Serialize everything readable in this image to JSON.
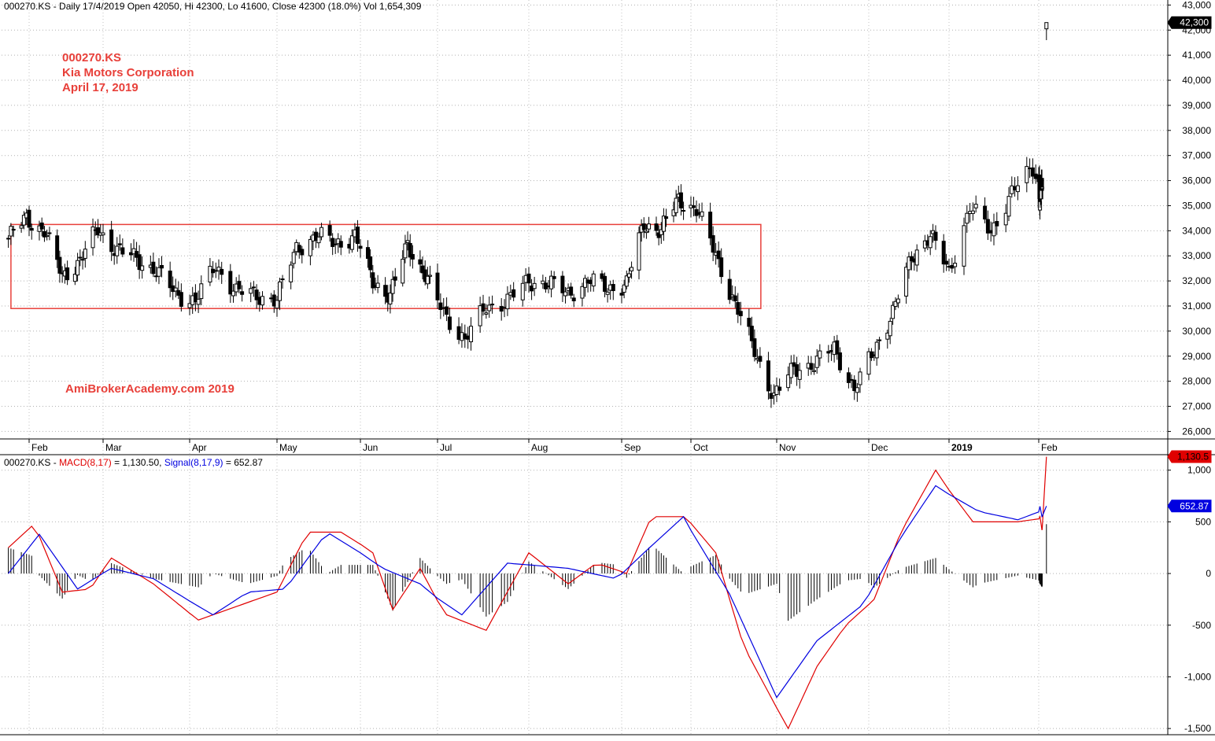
{
  "header": {
    "price_text": "000270.KS - Daily 17/4/2019 Open 42050, Hi 42300, Lo 41600, Close 42300 (18.0%) Vol 1,654,309",
    "macd_prefix": "000270.KS - ",
    "macd_label": "MACD(8,17)",
    "macd_value": " = 1,130.50, ",
    "signal_label": "Signal(8,17,9)",
    "signal_value": " = 652.87"
  },
  "annotations": {
    "symbol": "000270.KS",
    "company": "Kia Motors Corporation",
    "date": "April 17, 2019",
    "watermark": "AmiBrokerAcademy.com  2019"
  },
  "colors": {
    "macd": "#e00000",
    "signal": "#0000e0",
    "box": "#e8403a",
    "annotation": "#e8403a",
    "candle": "#000000"
  },
  "chart_data": [
    {
      "type": "candlestick",
      "x_labels": [
        "Feb",
        "Mar",
        "Apr",
        "May",
        "Jun",
        "Jul",
        "Aug",
        "Sep",
        "Oct",
        "Nov",
        "Dec",
        "2019",
        "Feb"
      ],
      "y_ticks": [
        26000,
        27000,
        28000,
        29000,
        30000,
        31000,
        32000,
        33000,
        34000,
        35000,
        36000,
        37000,
        38000,
        39000,
        40000,
        41000,
        42000,
        43000
      ],
      "y_tick_labels": [
        "26,000",
        "27,000",
        "28,000",
        "29,000",
        "30,000",
        "31,000",
        "32,000",
        "33,000",
        "34,000",
        "35,000",
        "36,000",
        "37,000",
        "38,000",
        "39,000",
        "40,000",
        "41,000",
        "42,000",
        "43,000"
      ],
      "ylim": [
        25700,
        43200
      ],
      "last_price_label": "42,300",
      "range_box": {
        "start": "2018-01-25",
        "end": "2018-10-24",
        "low": 30900,
        "high": 34250
      },
      "closes": [
        [
          "2018-01-24",
          33700
        ],
        [
          "2018-01-31",
          34500
        ],
        [
          "2018-02-07",
          34000
        ],
        [
          "2018-02-14",
          32200
        ],
        [
          "2018-02-21",
          32800
        ],
        [
          "2018-02-28",
          34100
        ],
        [
          "2018-03-07",
          33200
        ],
        [
          "2018-03-14",
          32900
        ],
        [
          "2018-03-21",
          32400
        ],
        [
          "2018-03-28",
          31500
        ],
        [
          "2018-04-04",
          31200
        ],
        [
          "2018-04-11",
          32600
        ],
        [
          "2018-04-18",
          31600
        ],
        [
          "2018-04-25",
          31400
        ],
        [
          "2018-05-02",
          31300
        ],
        [
          "2018-05-09",
          33300
        ],
        [
          "2018-05-16",
          33800
        ],
        [
          "2018-05-23",
          33500
        ],
        [
          "2018-05-30",
          33800
        ],
        [
          "2018-06-06",
          32000
        ],
        [
          "2018-06-13",
          31400
        ],
        [
          "2018-06-20",
          33500
        ],
        [
          "2018-06-27",
          32200
        ],
        [
          "2018-07-04",
          30800
        ],
        [
          "2018-07-11",
          29600
        ],
        [
          "2018-07-18",
          31000
        ],
        [
          "2018-07-25",
          31200
        ],
        [
          "2018-08-01",
          32000
        ],
        [
          "2018-08-08",
          31900
        ],
        [
          "2018-08-15",
          31500
        ],
        [
          "2018-08-22",
          32000
        ],
        [
          "2018-08-29",
          31700
        ],
        [
          "2018-09-05",
          31900
        ],
        [
          "2018-09-12",
          34300
        ],
        [
          "2018-09-19",
          34000
        ],
        [
          "2018-09-26",
          35300
        ],
        [
          "2018-10-03",
          34800
        ],
        [
          "2018-10-10",
          33100
        ],
        [
          "2018-10-17",
          31000
        ],
        [
          "2018-10-24",
          29300
        ],
        [
          "2018-10-31",
          27300
        ],
        [
          "2018-11-07",
          28600
        ],
        [
          "2018-11-14",
          28600
        ],
        [
          "2018-11-21",
          29400
        ],
        [
          "2018-11-28",
          27600
        ],
        [
          "2018-12-05",
          29300
        ],
        [
          "2018-12-12",
          30700
        ],
        [
          "2018-12-19",
          33000
        ],
        [
          "2018-12-26",
          33800
        ],
        [
          "2019-01-02",
          32400
        ],
        [
          "2019-01-09",
          34900
        ],
        [
          "2019-01-16",
          34000
        ],
        [
          "2019-01-23",
          35500
        ],
        [
          "2019-01-30",
          36500
        ],
        [
          "2019-02-06",
          35000
        ],
        [
          "2019-02-13",
          36000
        ],
        [
          "2019-04-17",
          42300
        ]
      ]
    },
    {
      "type": "line",
      "title": "MACD(8,17)",
      "y_ticks": [
        -1500,
        -1000,
        -500,
        0,
        500,
        1000
      ],
      "y_tick_labels": [
        "-1,500",
        "-1,000",
        "-500",
        "0",
        "500",
        "1,000"
      ],
      "ylim": [
        -1560,
        1150
      ],
      "macd_last_label": "1,130.5",
      "signal_last_label": "652.87",
      "series": [
        {
          "name": "MACD(8,17)",
          "points": [
            [
              "2018-01-24",
              250
            ],
            [
              "2018-02-03",
              480
            ],
            [
              "2018-02-14",
              -180
            ],
            [
              "2018-02-25",
              -150
            ],
            [
              "2018-03-05",
              150
            ],
            [
              "2018-03-20",
              -100
            ],
            [
              "2018-04-05",
              -450
            ],
            [
              "2018-04-20",
              -300
            ],
            [
              "2018-05-02",
              -180
            ],
            [
              "2018-05-13",
              400
            ],
            [
              "2018-05-25",
              400
            ],
            [
              "2018-06-06",
              200
            ],
            [
              "2018-06-14",
              -350
            ],
            [
              "2018-06-25",
              50
            ],
            [
              "2018-07-05",
              -400
            ],
            [
              "2018-07-18",
              -550
            ],
            [
              "2018-08-01",
              200
            ],
            [
              "2018-08-15",
              -100
            ],
            [
              "2018-08-25",
              100
            ],
            [
              "2018-09-05",
              0
            ],
            [
              "2018-09-15",
              550
            ],
            [
              "2018-09-29",
              550
            ],
            [
              "2018-10-10",
              200
            ],
            [
              "2018-10-20",
              -700
            ],
            [
              "2018-11-05",
              -1500
            ],
            [
              "2018-11-15",
              -900
            ],
            [
              "2018-11-25",
              -500
            ],
            [
              "2018-12-05",
              -250
            ],
            [
              "2018-12-15",
              400
            ],
            [
              "2018-12-28",
              1000
            ],
            [
              "2019-01-10",
              500
            ],
            [
              "2019-01-25",
              500
            ],
            [
              "2019-02-06",
              550
            ],
            [
              "2019-02-14",
              420
            ],
            [
              "2019-04-17",
              1130.5
            ]
          ]
        },
        {
          "name": "Signal(8,17,9)",
          "points": [
            [
              "2018-01-24",
              0
            ],
            [
              "2018-02-05",
              380
            ],
            [
              "2018-02-20",
              -150
            ],
            [
              "2018-03-05",
              50
            ],
            [
              "2018-03-20",
              -50
            ],
            [
              "2018-04-10",
              -400
            ],
            [
              "2018-04-22",
              -180
            ],
            [
              "2018-05-05",
              -150
            ],
            [
              "2018-05-20",
              400
            ],
            [
              "2018-06-10",
              50
            ],
            [
              "2018-06-25",
              -100
            ],
            [
              "2018-07-10",
              -400
            ],
            [
              "2018-07-25",
              100
            ],
            [
              "2018-08-15",
              50
            ],
            [
              "2018-09-01",
              -50
            ],
            [
              "2018-09-12",
              200
            ],
            [
              "2018-09-28",
              550
            ],
            [
              "2018-10-15",
              -200
            ],
            [
              "2018-11-01",
              -1200
            ],
            [
              "2018-11-15",
              -650
            ],
            [
              "2018-12-01",
              -300
            ],
            [
              "2018-12-15",
              350
            ],
            [
              "2018-12-28",
              850
            ],
            [
              "2019-01-12",
              600
            ],
            [
              "2019-01-25",
              520
            ],
            [
              "2019-02-06",
              650
            ],
            [
              "2019-02-14",
              550
            ],
            [
              "2019-04-17",
              652.87
            ]
          ]
        }
      ]
    }
  ]
}
